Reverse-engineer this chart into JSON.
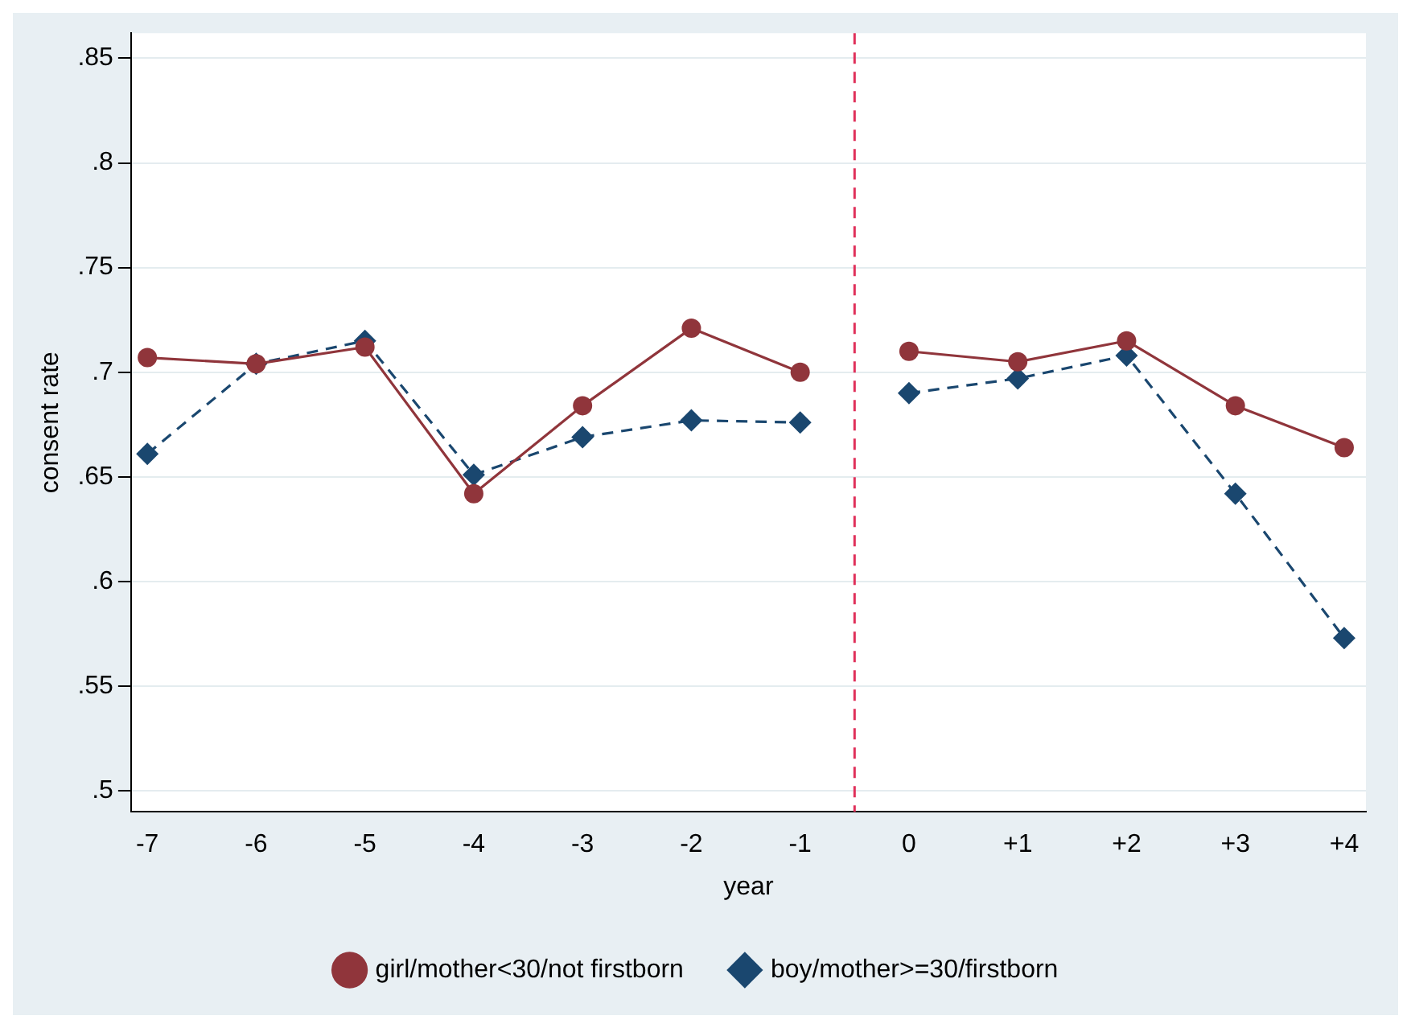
{
  "chart_data": {
    "type": "line",
    "xlabel": "year",
    "ylabel": "consent rate",
    "x": [
      -7,
      -6,
      -5,
      -4,
      -3,
      -2,
      -1,
      -0.5,
      0,
      1,
      2,
      3,
      4
    ],
    "series": [
      {
        "name": "boy/mother>=30/firstborn",
        "color": "#1a476f",
        "marker": "diamond",
        "line_style": "dashed",
        "values": [
          0.661,
          0.704,
          0.715,
          0.651,
          0.669,
          0.677,
          0.676,
          null,
          0.69,
          0.697,
          0.708,
          0.642,
          0.573
        ]
      },
      {
        "name": "girl/mother<30/not firstborn",
        "color": "#90353b",
        "marker": "circle",
        "line_style": "solid",
        "values": [
          0.707,
          0.704,
          0.712,
          0.642,
          0.684,
          0.721,
          0.7,
          null,
          0.71,
          0.705,
          0.715,
          0.684,
          0.664
        ]
      }
    ],
    "xlim": [
      -7.15,
      4.2
    ],
    "xticks": [
      -7,
      -6,
      -5,
      -4,
      -3,
      -2,
      -1,
      0,
      {
        "value": 1,
        "label": "+1"
      },
      {
        "value": 2,
        "label": "+2"
      },
      {
        "value": 3,
        "label": "+3"
      },
      {
        "value": 4,
        "label": "+4"
      }
    ],
    "ylim": [
      0.49,
      0.862
    ],
    "yticks": [
      {
        "value": 0.5,
        "label": ".5"
      },
      {
        "value": 0.55,
        "label": ".55"
      },
      {
        "value": 0.6,
        "label": ".6"
      },
      {
        "value": 0.65,
        "label": ".65"
      },
      {
        "value": 0.7,
        "label": ".7"
      },
      {
        "value": 0.75,
        "label": ".75"
      },
      {
        "value": 0.8,
        "label": ".8"
      },
      {
        "value": 0.85,
        "label": ".85"
      }
    ],
    "ref_lines": [
      {
        "axis": "x",
        "value": -0.5,
        "color": "#e0305a",
        "line_style": "dashed"
      }
    ],
    "grid": "y",
    "legend": "bottom"
  }
}
